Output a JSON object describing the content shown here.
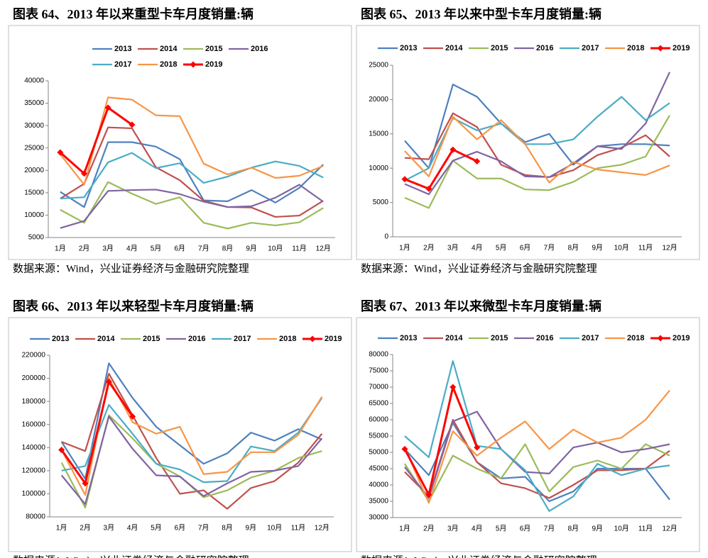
{
  "chart_data": [
    {
      "type": "line",
      "title": "图表 64、2013 年以来重型卡车月度销量:辆",
      "source": "数据来源：Wind，兴业证券经济与金融研究院整理",
      "categories": [
        "1月",
        "2月",
        "3月",
        "4月",
        "5月",
        "6月",
        "7月",
        "8月",
        "9月",
        "10月",
        "11月",
        "12月"
      ],
      "ylim": [
        5000,
        40000
      ],
      "yticks": [
        5000,
        10000,
        15000,
        20000,
        25000,
        30000,
        35000,
        40000
      ],
      "series": [
        {
          "name": "2013",
          "color": "#4f81bd",
          "values": [
            15200,
            11800,
            26300,
            26300,
            25300,
            22500,
            13300,
            13100,
            15600,
            12800,
            16100,
            21300
          ]
        },
        {
          "name": "2014",
          "color": "#c0504d",
          "values": [
            13700,
            17000,
            29600,
            29400,
            20700,
            17800,
            13200,
            11800,
            11700,
            9600,
            9900,
            13200
          ]
        },
        {
          "name": "2015",
          "color": "#9bbb59",
          "values": [
            11200,
            8300,
            17400,
            14800,
            12500,
            14000,
            8300,
            7000,
            8300,
            7700,
            8400,
            11600
          ]
        },
        {
          "name": "2016",
          "color": "#8064a2",
          "values": [
            7100,
            8700,
            15400,
            15600,
            15700,
            14700,
            13000,
            11800,
            12000,
            13900,
            16800,
            13000
          ]
        },
        {
          "name": "2017",
          "color": "#4bacc6",
          "values": [
            13700,
            14000,
            21800,
            23900,
            20500,
            21600,
            17200,
            18600,
            20600,
            22000,
            21000,
            18400
          ]
        },
        {
          "name": "2018",
          "color": "#f79646",
          "values": [
            23600,
            16800,
            36300,
            35800,
            32300,
            32100,
            21500,
            19100,
            20600,
            18300,
            18800,
            21000
          ]
        },
        {
          "name": "2019",
          "color": "#ff0000",
          "marker": "diamond",
          "values": [
            24000,
            19300,
            34000,
            30200,
            null,
            null,
            null,
            null,
            null,
            null,
            null,
            null
          ]
        }
      ]
    },
    {
      "type": "line",
      "title": "图表 65、2013 年以来中型卡车月度销量:辆",
      "source": "数据来源：Wind，兴业证券经济与金融研究院整理",
      "categories": [
        "1月",
        "2月",
        "3月",
        "4月",
        "5月",
        "6月",
        "7月",
        "8月",
        "9月",
        "10月",
        "11月",
        "12月"
      ],
      "ylim": [
        0,
        25000
      ],
      "yticks": [
        0,
        5000,
        10000,
        15000,
        20000,
        25000
      ],
      "series": [
        {
          "name": "2013",
          "color": "#4f81bd",
          "values": [
            14000,
            10000,
            22200,
            20400,
            16500,
            13800,
            15000,
            10500,
            13200,
            13500,
            13500,
            13300
          ]
        },
        {
          "name": "2014",
          "color": "#c0504d",
          "values": [
            11500,
            11300,
            18000,
            16000,
            10500,
            9000,
            8700,
            9700,
            11900,
            13000,
            14800,
            11700
          ]
        },
        {
          "name": "2015",
          "color": "#9bbb59",
          "values": [
            5700,
            4200,
            11100,
            8500,
            8500,
            6900,
            6800,
            8000,
            10000,
            10500,
            11700,
            17700
          ]
        },
        {
          "name": "2016",
          "color": "#8064a2",
          "values": [
            7700,
            6200,
            11100,
            12400,
            11000,
            8800,
            8700,
            10700,
            13200,
            12800,
            16500,
            24000
          ]
        },
        {
          "name": "2017",
          "color": "#4bacc6",
          "values": [
            8200,
            10000,
            17300,
            15500,
            16500,
            13500,
            13500,
            14200,
            17500,
            20400,
            17000,
            19500
          ]
        },
        {
          "name": "2018",
          "color": "#f79646",
          "values": [
            12500,
            8800,
            17500,
            14200,
            17000,
            13500,
            7900,
            10900,
            9800,
            9400,
            9000,
            10400
          ]
        },
        {
          "name": "2019",
          "color": "#ff0000",
          "marker": "diamond",
          "values": [
            8400,
            7000,
            12700,
            11000,
            null,
            null,
            null,
            null,
            null,
            null,
            null,
            null
          ]
        }
      ]
    },
    {
      "type": "line",
      "title": "图表 66、2013 年以来轻型卡车月度销量:辆",
      "source": "数据来源：Wind，兴业证券经济与金融研究院整理",
      "categories": [
        "1月",
        "2月",
        "3月",
        "4月",
        "5月",
        "6月",
        "7月",
        "8月",
        "9月",
        "10月",
        "11月",
        "12月"
      ],
      "ylim": [
        80000,
        220000
      ],
      "yticks": [
        80000,
        100000,
        120000,
        140000,
        160000,
        180000,
        200000,
        220000
      ],
      "series": [
        {
          "name": "2013",
          "color": "#4f81bd",
          "values": [
            145000,
            113000,
            213000,
            183000,
            158000,
            142000,
            126000,
            135000,
            153000,
            146000,
            156000,
            147000
          ]
        },
        {
          "name": "2014",
          "color": "#c0504d",
          "values": [
            145000,
            137000,
            204000,
            168000,
            131000,
            100000,
            103000,
            87000,
            105000,
            111000,
            127000,
            152000
          ]
        },
        {
          "name": "2015",
          "color": "#9bbb59",
          "values": [
            127000,
            88000,
            168000,
            148000,
            126000,
            115000,
            97000,
            103000,
            114000,
            120000,
            131000,
            137000
          ]
        },
        {
          "name": "2016",
          "color": "#8064a2",
          "values": [
            116000,
            91000,
            167000,
            139000,
            116000,
            115000,
            98000,
            109000,
            119000,
            120000,
            124000,
            148000
          ]
        },
        {
          "name": "2017",
          "color": "#4bacc6",
          "values": [
            120000,
            124000,
            177000,
            152000,
            126000,
            121000,
            110000,
            111000,
            141000,
            137000,
            153000,
            183000
          ]
        },
        {
          "name": "2018",
          "color": "#f79646",
          "values": [
            138000,
            99000,
            200000,
            162000,
            152000,
            158000,
            117000,
            119000,
            136000,
            136000,
            151000,
            184000
          ]
        },
        {
          "name": "2019",
          "color": "#ff0000",
          "marker": "diamond",
          "values": [
            138000,
            109000,
            197000,
            167000,
            null,
            null,
            null,
            null,
            null,
            null,
            null,
            null
          ]
        }
      ]
    },
    {
      "type": "line",
      "title": "图表 67、2013 年以来微型卡车月度销量:辆",
      "source": "数据来源：Wind，兴业证券经济与金融研究院整理",
      "categories": [
        "1月",
        "2月",
        "3月",
        "4月",
        "5月",
        "6月",
        "7月",
        "8月",
        "9月",
        "10月",
        "11月",
        "12月"
      ],
      "ylim": [
        30000,
        80000
      ],
      "yticks": [
        30000,
        35000,
        40000,
        45000,
        50000,
        55000,
        60000,
        65000,
        70000,
        75000,
        80000
      ],
      "series": [
        {
          "name": "2013",
          "color": "#4f81bd",
          "values": [
            51000,
            43000,
            59000,
            47000,
            42000,
            42500,
            35000,
            38000,
            45000,
            45000,
            45000,
            35500
          ]
        },
        {
          "name": "2014",
          "color": "#c0504d",
          "values": [
            44000,
            36500,
            60000,
            47000,
            40500,
            39000,
            36000,
            40000,
            44500,
            44500,
            45000,
            50500
          ]
        },
        {
          "name": "2015",
          "color": "#9bbb59",
          "values": [
            46500,
            35000,
            49000,
            45000,
            42000,
            52500,
            38000,
            45500,
            47500,
            45000,
            52500,
            49000
          ]
        },
        {
          "name": "2016",
          "color": "#8064a2",
          "values": [
            45500,
            36000,
            59500,
            62500,
            51000,
            44000,
            43500,
            51500,
            53000,
            50000,
            51000,
            52500
          ]
        },
        {
          "name": "2017",
          "color": "#4bacc6",
          "values": [
            55000,
            48500,
            78000,
            52000,
            51000,
            44500,
            32000,
            36500,
            46500,
            43000,
            45000,
            46000
          ]
        },
        {
          "name": "2018",
          "color": "#f79646",
          "values": [
            51500,
            34500,
            56500,
            49000,
            54500,
            59500,
            51000,
            57000,
            53000,
            54500,
            60000,
            69000
          ]
        },
        {
          "name": "2019",
          "color": "#ff0000",
          "marker": "diamond",
          "values": [
            51000,
            37000,
            70000,
            51500,
            null,
            null,
            null,
            null,
            null,
            null,
            null,
            null
          ]
        }
      ]
    }
  ]
}
